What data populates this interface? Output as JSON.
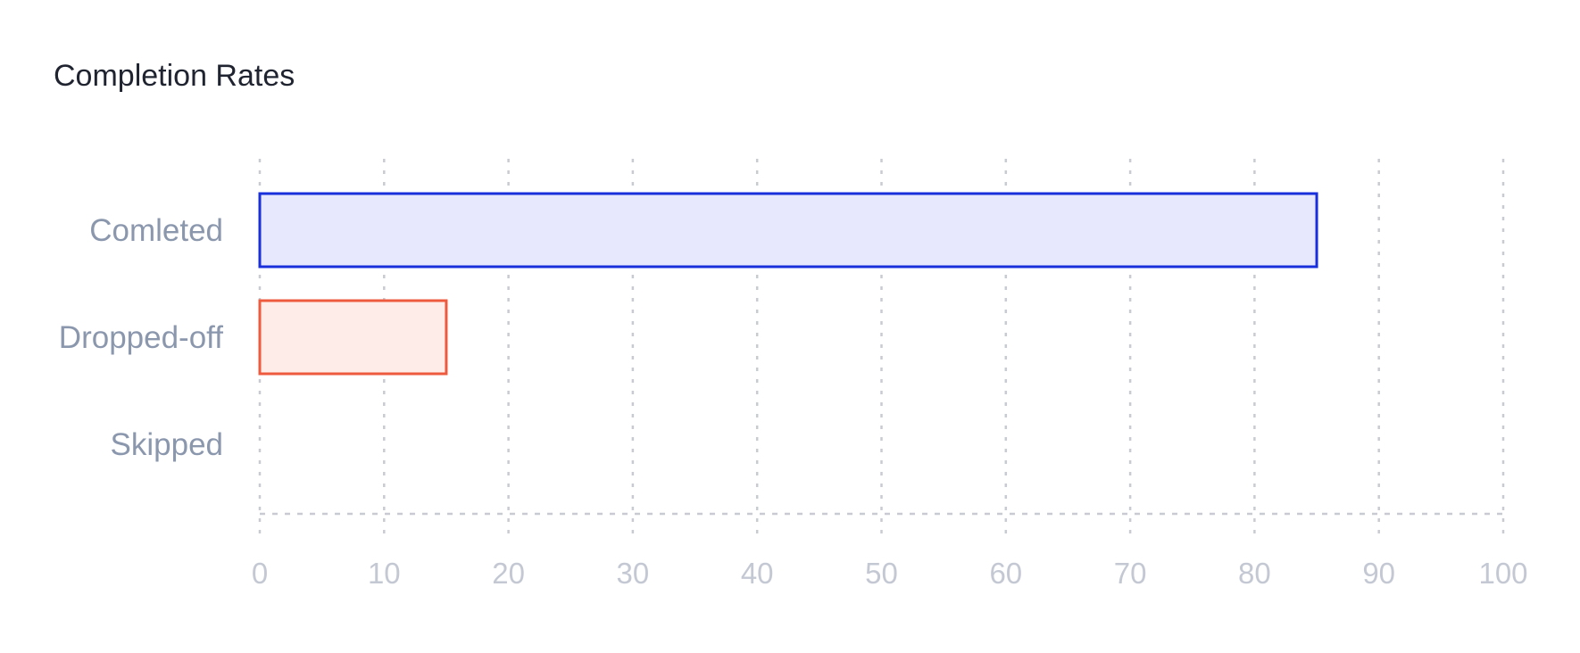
{
  "chart_data": {
    "type": "bar",
    "orientation": "horizontal",
    "title": "Completion Rates",
    "xlabel": "",
    "ylabel": "",
    "categories": [
      "Comleted",
      "Dropped-off",
      "Skipped"
    ],
    "values": [
      85,
      15,
      0
    ],
    "xlim": [
      0,
      100
    ],
    "ticks": [
      0,
      10,
      20,
      30,
      40,
      50,
      60,
      70,
      80,
      90,
      100
    ],
    "grid": true,
    "legend": "none",
    "colors": [
      {
        "stroke": "#1a2fdc",
        "fill": "#e7e8fd"
      },
      {
        "stroke": "#ee5a3d",
        "fill": "#fdece8"
      },
      {
        "stroke": "#9aa3b5",
        "fill": "#f1f2f6"
      }
    ],
    "grid_color": "#c9cbd2"
  }
}
